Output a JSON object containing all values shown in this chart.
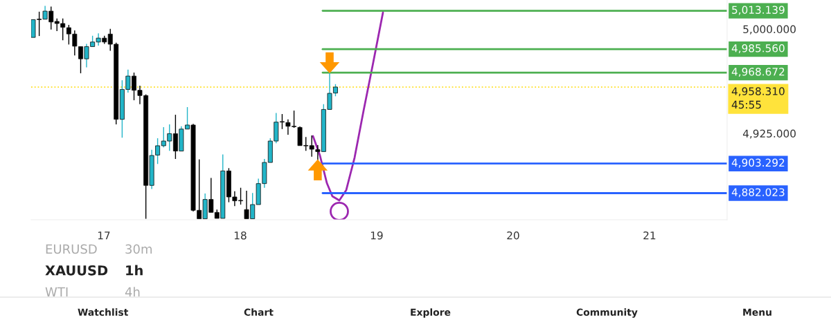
{
  "chart_data": {
    "type": "candlestick",
    "x": [
      16.482,
      16.526,
      16.569,
      16.613,
      16.656,
      16.699,
      16.743,
      16.786,
      16.83,
      16.873,
      16.917,
      16.96,
      17.004,
      17.047,
      17.09,
      17.134,
      17.177,
      17.221,
      17.264,
      17.308,
      17.351,
      17.394,
      17.438,
      17.481,
      17.525,
      17.568,
      17.612,
      17.655,
      17.699,
      17.742,
      17.786,
      17.829,
      17.872,
      17.916,
      17.959,
      18.003,
      18.046,
      18.09,
      18.133,
      18.177,
      18.22,
      18.263,
      18.307,
      18.35,
      18.394,
      18.437,
      18.481,
      18.524,
      18.568,
      18.611,
      18.655,
      18.698
    ],
    "ohlc": [
      [
        4994,
        5007,
        4994,
        5006.8
      ],
      [
        5007,
        5012.5,
        4995,
        5006.8
      ],
      [
        5007.1,
        5016.7,
        5007,
        5012.9
      ],
      [
        5012.9,
        5016.2,
        4999.7,
        5005.1
      ],
      [
        5005.5,
        5007.6,
        4998.5,
        5004
      ],
      [
        5004,
        5007.6,
        4991.9,
        5001.3
      ],
      [
        5001,
        5003,
        4988.9,
        4996.5
      ],
      [
        4996.4,
        4999,
        4981,
        4987.7
      ],
      [
        4987.4,
        4987.4,
        4968.2,
        4978.6
      ],
      [
        4978.6,
        4989.4,
        4972.5,
        4987.4
      ],
      [
        4987.4,
        4995.2,
        4987.4,
        4990.7
      ],
      [
        4990.7,
        4996.9,
        4988.1,
        4993.5
      ],
      [
        4993.5,
        4995.2,
        4989.4,
        4990.7
      ],
      [
        4996.4,
        5000.2,
        4984.4,
        4989.1
      ],
      [
        4989.1,
        4990.2,
        4931.5,
        4935.1
      ],
      [
        4935.1,
        4963.2,
        4921.9,
        4956.6
      ],
      [
        4956.6,
        4970.9,
        4954.3,
        4966.2
      ],
      [
        4966.2,
        4968.7,
        4948.8,
        4956
      ],
      [
        4956,
        4959.3,
        4946,
        4952.2
      ],
      [
        4952.2,
        4953,
        4863.6,
        4887.6
      ],
      [
        4887.6,
        4913.2,
        4885,
        4909.1
      ],
      [
        4909.4,
        4921.5,
        4903,
        4916.1
      ],
      [
        4916.1,
        4929.5,
        4914.9,
        4919.5
      ],
      [
        4919.5,
        4931.5,
        4912.4,
        4924.8
      ],
      [
        4924.8,
        4938.4,
        4906.6,
        4912.3
      ],
      [
        4912.3,
        4930.1,
        4912.3,
        4928.1
      ],
      [
        4928.1,
        4943.9,
        4928.1,
        4931
      ],
      [
        4931,
        4931.8,
        4868.9,
        4869.7
      ],
      [
        4869.7,
        4906.3,
        4863.6,
        4863.6
      ],
      [
        4863.6,
        4881.8,
        4863.6,
        4877.5
      ],
      [
        4877.5,
        4893,
        4868.2,
        4868.2
      ],
      [
        4868.2,
        4870.2,
        4863.9,
        4863.9
      ],
      [
        4863.9,
        4909.9,
        4863.9,
        4898
      ],
      [
        4898,
        4900,
        4875.5,
        4879.3
      ],
      [
        4879.3,
        4883.4,
        4872.7,
        4876.5
      ],
      [
        4876.8,
        4885.9,
        4873.8,
        4876.5
      ],
      [
        4870.2,
        4883.8,
        4863.6,
        4863.6
      ],
      [
        4863.6,
        4882.1,
        4863.6,
        4873.8
      ],
      [
        4873.8,
        4892.5,
        4873.8,
        4888.9
      ],
      [
        4888.9,
        4906.6,
        4885.9,
        4904.1
      ],
      [
        4904.1,
        4921.5,
        4904.1,
        4919.5
      ],
      [
        4919.5,
        4939.7,
        4917.9,
        4933.1
      ],
      [
        4933.5,
        4938.9,
        4928.1,
        4933.1
      ],
      [
        4932.8,
        4935.1,
        4924,
        4930.1
      ],
      [
        4930.1,
        4941.4,
        4929,
        4929.8
      ],
      [
        4929.3,
        4930,
        4916.2,
        4916.2
      ],
      [
        4916.2,
        4922.4,
        4912.4,
        4916
      ],
      [
        4916.2,
        4923.5,
        4908.3,
        4913.6
      ],
      [
        4913.3,
        4916.6,
        4905.8,
        4911.9
      ],
      [
        4911.9,
        4946,
        4911.9,
        4942.2
      ],
      [
        4942.2,
        4968.7,
        4942.2,
        4953.8
      ],
      [
        4954,
        4960.4,
        4951.7,
        4958.31
      ]
    ],
    "colors": [
      "#22b5c8",
      "#000000",
      "#22b5c8",
      "#000000",
      "#000000",
      "#000000",
      "#000000",
      "#000000",
      "#000000",
      "#22b5c8",
      "#22b5c8",
      "#22b5c8",
      "#000000",
      "#000000",
      "#000000",
      "#22b5c8",
      "#22b5c8",
      "#000000",
      "#000000",
      "#000000",
      "#22b5c8",
      "#22b5c8",
      "#22b5c8",
      "#22b5c8",
      "#000000",
      "#22b5c8",
      "#22b5c8",
      "#000000",
      "#000000",
      "#22b5c8",
      "#000000",
      "#000000",
      "#22b5c8",
      "#000000",
      "#000000",
      "#000000",
      "#000000",
      "#22b5c8",
      "#22b5c8",
      "#22b5c8",
      "#22b5c8",
      "#22b5c8",
      "#000000",
      "#000000",
      "#000000",
      "#000000",
      "#000000",
      "#000000",
      "#000000",
      "#22b5c8",
      "#22b5c8",
      "#22b5c8"
    ],
    "series": [
      {
        "type": "line",
        "color": "#9c27b0",
        "x": [
          18.533,
          18.584,
          18.635,
          18.675,
          18.726,
          18.777,
          18.838,
          18.904,
          18.97,
          19.046
        ],
        "values": [
          4923.0,
          4909.1,
          4889.2,
          4879.8,
          4876.8,
          4884.3,
          4907.6,
          4941.4,
          4973.7,
          5011.9
        ]
      },
      {
        "type": "line",
        "color": "#4caf50",
        "x": [
          18.604,
          21.569
        ],
        "values": [
          5013.139,
          5013.139
        ],
        "value_labels": [
          null,
          "5,013.139"
        ]
      },
      {
        "type": "line",
        "color": "#4caf50",
        "x": [
          18.604,
          21.569
        ],
        "values": [
          4985.56,
          4985.56
        ],
        "value_labels": [
          null,
          "4,985.560"
        ]
      },
      {
        "type": "line",
        "color": "#4caf50",
        "x": [
          18.604,
          21.569
        ],
        "values": [
          4968.672,
          4968.672
        ],
        "value_labels": [
          null,
          "4,968.672"
        ]
      },
      {
        "type": "line",
        "color": "#2962ff",
        "x": [
          18.604,
          21.569
        ],
        "values": [
          4903.292,
          4903.292
        ],
        "value_labels": [
          null,
          "4,903.292"
        ]
      },
      {
        "type": "line",
        "color": "#2962ff",
        "x": [
          18.604,
          21.569
        ],
        "values": [
          4882.023,
          4882.023
        ],
        "value_labels": [
          null,
          "4,882.023"
        ]
      }
    ],
    "ref_lines": [
      {
        "axis": "y",
        "value": 4958.31,
        "label": "4,958.310\n45:55",
        "color": "#ffe33b",
        "line_style": "dotted"
      }
    ],
    "xlim": [
      16.467,
      21.569
    ],
    "xticks": [
      17,
      18,
      19,
      20,
      21
    ],
    "ylim": [
      4862.9,
      5020.9
    ],
    "yticks": [
      {
        "value": 4925,
        "label": "4,925.000"
      },
      {
        "value": 5000,
        "label": "5,000.000"
      }
    ],
    "grid": false,
    "legend": false,
    "annotations": [
      "EURUSD",
      "30m",
      "XAUUSD",
      "1h",
      "WTI",
      "4h",
      "Watchlist",
      "Chart",
      "Explore",
      "Community",
      "Menu"
    ]
  }
}
